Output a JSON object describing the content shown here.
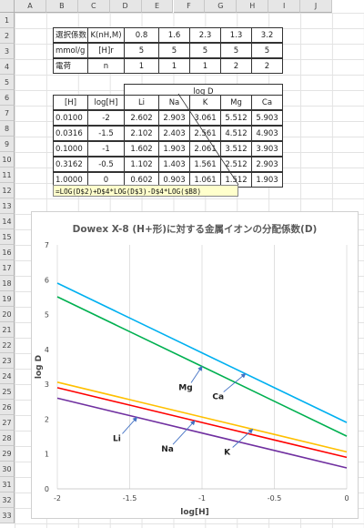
{
  "columns": [
    "A",
    "B",
    "C",
    "D",
    "E",
    "F",
    "G",
    "H",
    "I",
    "J"
  ],
  "rows": [
    "1",
    "2",
    "3",
    "4",
    "5",
    "6",
    "7",
    "8",
    "9",
    "10",
    "11",
    "12",
    "13",
    "14",
    "15",
    "16",
    "17",
    "18",
    "19",
    "20",
    "21",
    "22",
    "23",
    "24",
    "25",
    "26",
    "27",
    "28",
    "29",
    "30",
    "31",
    "32",
    "33"
  ],
  "table1": {
    "rows": [
      [
        "選択係数",
        "K(nH,M)",
        "0.8",
        "1.6",
        "2.3",
        "1.3",
        "3.2"
      ],
      [
        "mmol/g",
        "[H]r",
        "5",
        "5",
        "5",
        "5",
        "5"
      ],
      [
        "電荷",
        "n",
        "1",
        "1",
        "1",
        "2",
        "2"
      ]
    ]
  },
  "table2": {
    "group_header": "log D",
    "headers": [
      "[H]",
      "log[H]",
      "Li",
      "Na",
      "K",
      "Mg",
      "Ca"
    ],
    "rows": [
      [
        "0.0100",
        "-2",
        "2.602",
        "2.903",
        "3.061",
        "5.512",
        "5.903"
      ],
      [
        "0.0316",
        "-1.5",
        "2.102",
        "2.403",
        "2.561",
        "4.512",
        "4.903"
      ],
      [
        "0.1000",
        "-1",
        "1.602",
        "1.903",
        "2.061",
        "3.512",
        "3.903"
      ],
      [
        "0.3162",
        "-0.5",
        "1.102",
        "1.403",
        "1.561",
        "2.512",
        "2.903"
      ],
      [
        "1.0000",
        "0",
        "0.602",
        "0.903",
        "1.061",
        "1.512",
        "1.903"
      ]
    ]
  },
  "formula": "=LOG(D$2)+D$4*LOG(D$3)-D$4*LOG($B8)",
  "colors": {
    "Li": "#7030a0",
    "Na": "#ff0000",
    "K": "#ffc000",
    "Mg": "#00b050",
    "Ca": "#00b0f0"
  },
  "chart_data": {
    "type": "line",
    "title": "Dowex X-8 (H+形)に対する金属イオンの分配係数(D)",
    "xlabel": "log[H]",
    "ylabel": "log D",
    "xlim": [
      -2,
      0
    ],
    "ylim": [
      0,
      7
    ],
    "xticks": [
      "-2",
      "-1.5",
      "-1",
      "-0.5",
      "0"
    ],
    "yticks": [
      "0",
      "1",
      "2",
      "3",
      "4",
      "5",
      "6",
      "7"
    ],
    "grid": "vertical",
    "x": [
      -2,
      -1.5,
      -1,
      -0.5,
      0
    ],
    "series": [
      {
        "name": "Li",
        "values": [
          2.602,
          2.102,
          1.602,
          1.102,
          0.602
        ]
      },
      {
        "name": "Na",
        "values": [
          2.903,
          2.403,
          1.903,
          1.403,
          0.903
        ]
      },
      {
        "name": "K",
        "values": [
          3.061,
          2.561,
          2.061,
          1.561,
          1.061
        ]
      },
      {
        "name": "Mg",
        "values": [
          5.512,
          4.512,
          3.512,
          2.512,
          1.512
        ]
      },
      {
        "name": "Ca",
        "values": [
          5.903,
          4.903,
          3.903,
          2.903,
          1.903
        ]
      }
    ],
    "annotations": [
      {
        "text": "Mg",
        "series": "Mg",
        "at_x": -1.0
      },
      {
        "text": "Ca",
        "series": "Ca",
        "at_x": -0.7
      },
      {
        "text": "Li",
        "series": "Li",
        "at_x": -1.45
      },
      {
        "text": "Na",
        "series": "Na",
        "at_x": -1.05
      },
      {
        "text": "K",
        "series": "K",
        "at_x": -0.65
      }
    ]
  }
}
